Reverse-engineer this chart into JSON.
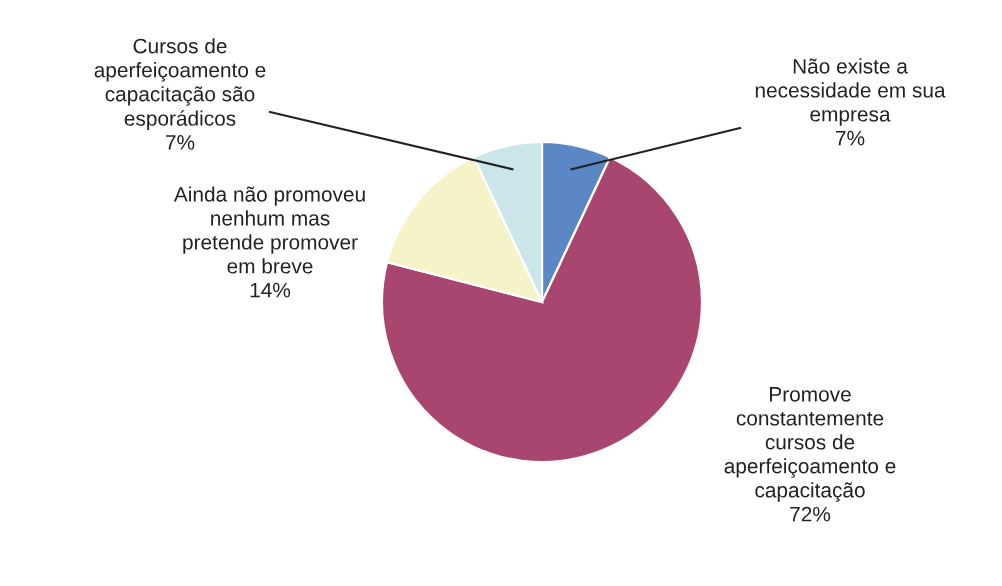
{
  "chart_data": {
    "type": "pie",
    "categories": [
      "Não existe a\nnecessidade em sua\nempresa",
      "Promove\nconstantemente\ncursos de\naperfeiçoamento e\ncapacitação",
      "Ainda não promoveu\nnenhum mas\npretende promover\nem breve",
      "Cursos de\naperfeiçoamento e\ncapacitação são\nesporádicos"
    ],
    "values": [
      7,
      72,
      14,
      7
    ],
    "value_labels": [
      "7%",
      "72%",
      "14%",
      "7%"
    ],
    "colors": [
      "#5b87c5",
      "#a9466f",
      "#f7f3c9",
      "#cbe6e9"
    ],
    "legend": false
  }
}
